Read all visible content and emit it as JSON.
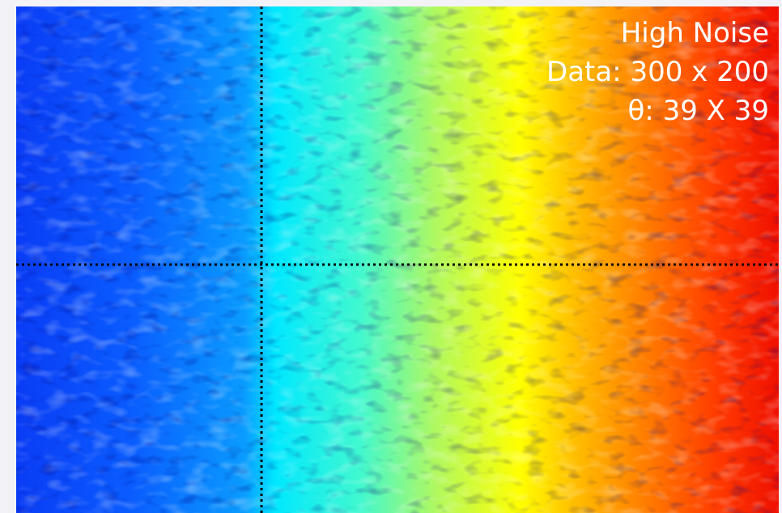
{
  "overlay": {
    "lines": [
      "High Noise",
      "Data: 300 x 200",
      "θ: 39 X 39"
    ]
  }
}
